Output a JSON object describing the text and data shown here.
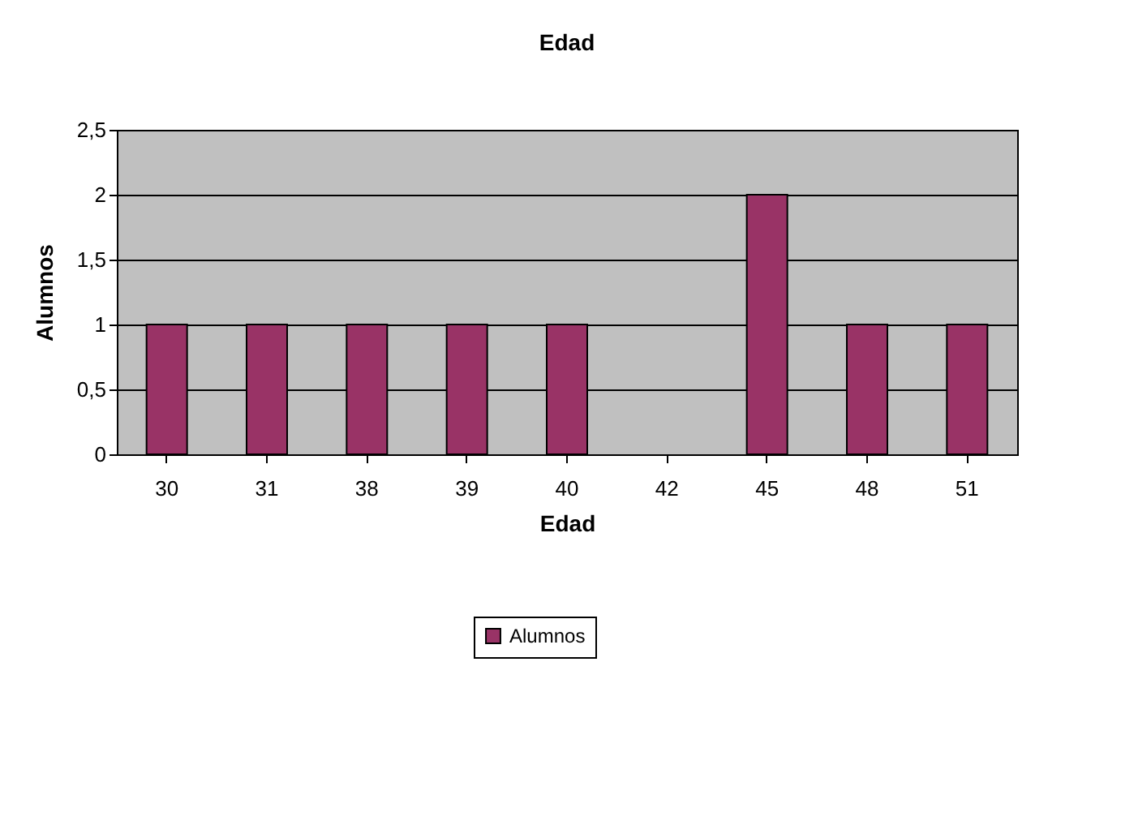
{
  "chart_data": {
    "type": "bar",
    "title": "Edad",
    "xlabel": "Edad",
    "ylabel": "Alumnos",
    "categories": [
      "30",
      "31",
      "38",
      "39",
      "40",
      "42",
      "45",
      "48",
      "51"
    ],
    "series": [
      {
        "name": "Alumnos",
        "color": "#993366",
        "values": [
          1,
          1,
          1,
          1,
          1,
          null,
          2,
          1,
          1
        ]
      }
    ],
    "ylim": [
      0,
      2.5
    ],
    "yticks": [
      0,
      {
        "value": 0.5,
        "label": "0,5"
      },
      1,
      {
        "value": 1.5,
        "label": "1,5"
      },
      2,
      {
        "value": 2.5,
        "label": "2,5"
      }
    ],
    "grid": "y",
    "legend": "bottom"
  }
}
